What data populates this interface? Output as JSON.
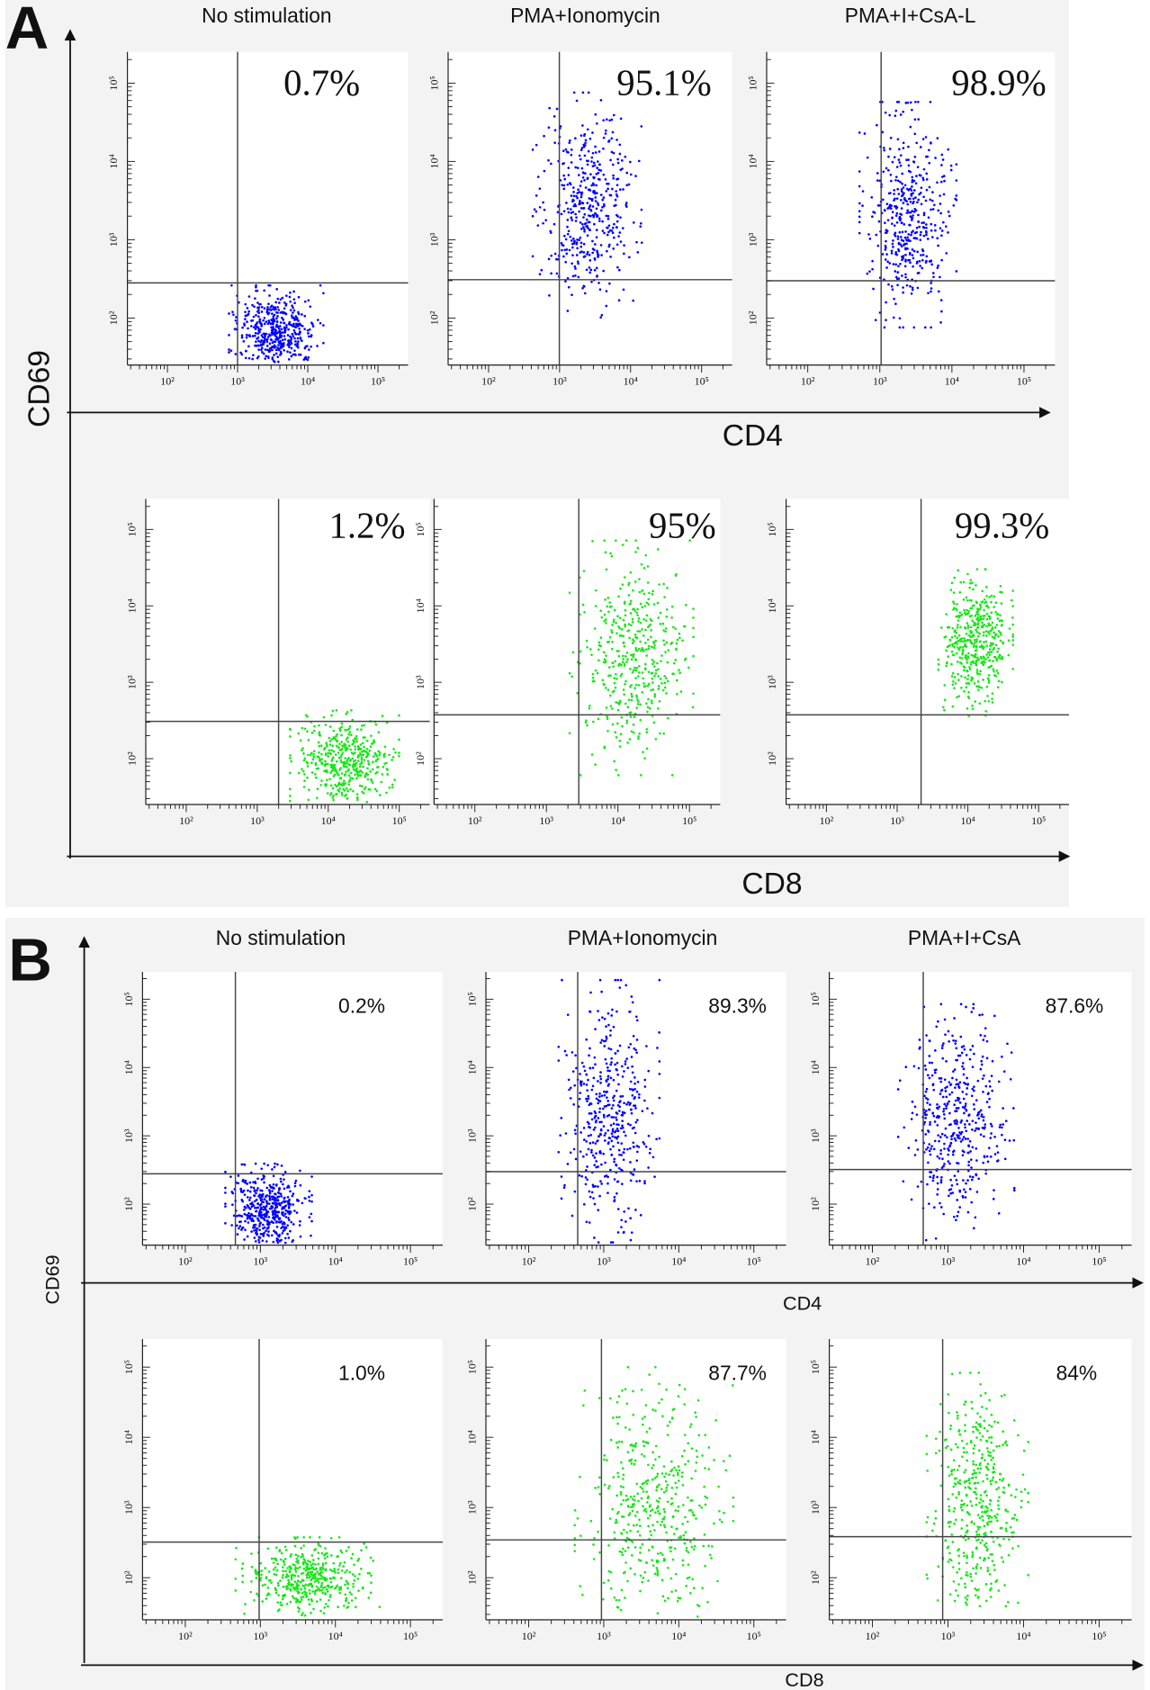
{
  "figure": {
    "panels": [
      {
        "label": "A",
        "y_axis_label": "CD69",
        "column_titles": [
          "No stimulation",
          "PMA+Ionomycin",
          "PMA+I+CsA-L"
        ],
        "rows": [
          {
            "x_axis_label": "CD4",
            "color": "#0000ff",
            "percentages": [
              "0.7%",
              "95.1%",
              "98.9%"
            ]
          },
          {
            "x_axis_label": "CD8",
            "color": "#19e619",
            "percentages": [
              "1.2%",
              "95%",
              "99.3%"
            ]
          }
        ]
      },
      {
        "label": "B",
        "y_axis_label": "CD69",
        "column_titles": [
          "No stimulation",
          "PMA+Ionomycin",
          "PMA+I+CsA"
        ],
        "rows": [
          {
            "x_axis_label": "CD4",
            "color": "#0000ff",
            "percentages": [
              "0.2%",
              "89.3%",
              "87.6%"
            ]
          },
          {
            "x_axis_label": "CD8",
            "color": "#19e619",
            "percentages": [
              "1.0%",
              "87.7%",
              "84%"
            ]
          }
        ]
      }
    ],
    "tick_labels": [
      "10²",
      "10³",
      "10⁴",
      "10⁵"
    ]
  }
}
